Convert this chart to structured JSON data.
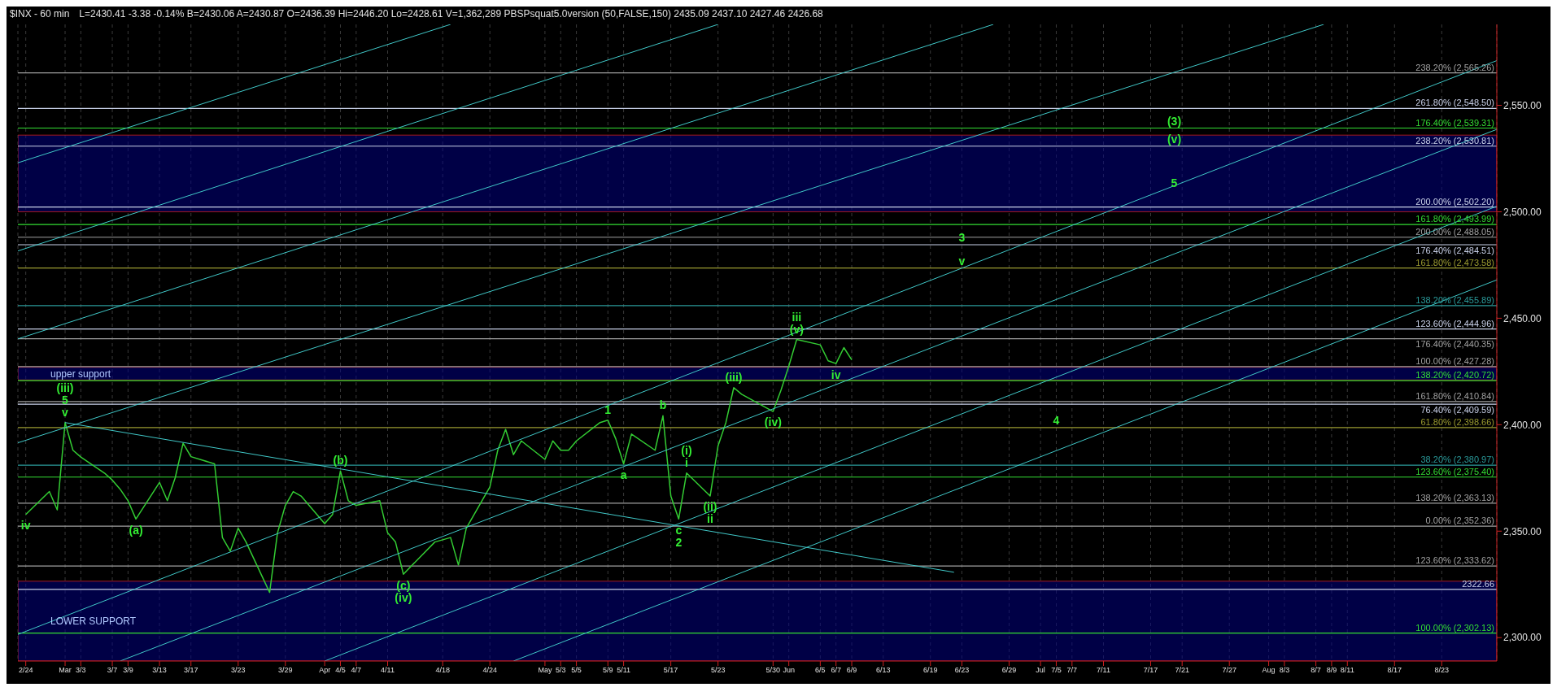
{
  "chart_data": {
    "type": "line",
    "title": "$INX - 60 min",
    "subtitle": "L=2430.41 -3.38 -0.14% B=2430.06 A=2430.87 O=2436.39 Hi=2446.20 Lo=2428.61 V=1,362,289 PBSPsquat5.0version (50,FALSE,150) 2435.09 2437.10 2427.46 2426.68",
    "x": [
      "--02-24",
      "--02-27",
      "--02-28",
      "--03-01",
      "--03-02",
      "--03-03",
      "--03-06",
      "--03-07",
      "--03-08",
      "--03-09",
      "--03-10",
      "--03-13",
      "--03-14",
      "--03-15",
      "--03-16",
      "--03-17",
      "--03-20",
      "--03-21",
      "--03-22",
      "--03-23",
      "--03-24",
      "--03-27",
      "--03-28",
      "--03-29",
      "--03-30",
      "--03-31",
      "--04-03",
      "--04-04",
      "--04-05",
      "--04-06",
      "--04-07",
      "--04-10",
      "--04-11",
      "--04-12",
      "--04-13",
      "--04-17",
      "--04-19",
      "--04-20",
      "--04-21",
      "--04-24",
      "--04-25",
      "--04-26",
      "--04-27",
      "--04-28",
      "--05-01",
      "--05-02",
      "--05-03",
      "--05-04",
      "--05-05",
      "--05-08",
      "--05-09",
      "--05-10",
      "--05-11",
      "--05-12",
      "--05-15",
      "--05-16",
      "--05-17",
      "--05-18",
      "--05-19",
      "--05-22",
      "--05-23",
      "--05-24",
      "--05-25",
      "--05-26",
      "--05-30",
      "--05-31",
      "--06-01",
      "--06-02",
      "--06-05",
      "--06-06",
      "--06-07",
      "--06-08",
      "--06-09"
    ],
    "series": [
      {
        "color": "#33cc33",
        "values": [
          2357.8,
          2368.6,
          2360,
          2401,
          2388,
          2384.8,
          2377.3,
          2374,
          2369.7,
          2364.3,
          2355.7,
          2372.9,
          2364.3,
          2375.1,
          2391.3,
          2385,
          2381.6,
          2347,
          2340.6,
          2351.4,
          2344.9,
          2321.2,
          2349.2,
          2362.1,
          2368.6,
          2366.5,
          2353.5,
          2357.8,
          2378.3,
          2364.3,
          2362.1,
          2364.3,
          2349.2,
          2344.9,
          2329.8,
          2344.9,
          2347,
          2334.1,
          2351.4,
          2370.8,
          2388,
          2397.8,
          2385.9,
          2392.4,
          2383.7,
          2392.4,
          2388,
          2388,
          2392.4,
          2401,
          2402.1,
          2393.4,
          2381.6,
          2395.6,
          2388,
          2404.2,
          2366.5,
          2355.7,
          2377.3,
          2366.5,
          2390,
          2401,
          2417.4,
          2414.3,
          2406.2,
          2416.2,
          2427.5,
          2440,
          2437.5,
          2430,
          2428.7,
          2436.2,
          2430.4
        ]
      },
      {
        "type": "line",
        "color": "#40c8c8",
        "x": [
          "--02-23",
          "--04-19"
        ],
        "values": [
          2523,
          2588
        ]
      },
      {
        "type": "line",
        "color": "#40c8c8",
        "x": [
          "--02-23",
          "--05-23"
        ],
        "values": [
          2481.6,
          2588
        ]
      },
      {
        "type": "line",
        "color": "#40c8c8",
        "x": [
          "--02-23",
          "--06-27"
        ],
        "values": [
          2440.3,
          2588
        ]
      },
      {
        "type": "line",
        "color": "#40c8c8",
        "x": [
          "--02-23",
          "--08-08"
        ],
        "values": [
          2391.5,
          2588
        ]
      },
      {
        "type": "line",
        "color": "#40c8c8",
        "x": [
          "--02-23",
          "--08-30"
        ],
        "values": [
          2301.5,
          2571
        ]
      },
      {
        "type": "line",
        "color": "#40c8c8",
        "x": [
          "--03-08",
          "--08-30"
        ],
        "values": [
          2289,
          2538.7
        ]
      },
      {
        "type": "line",
        "color": "#40c8c8",
        "x": [
          "--04-03",
          "--08-30"
        ],
        "values": [
          2289,
          2502.6
        ]
      },
      {
        "type": "line",
        "color": "#40c8c8",
        "x": [
          "--04-27",
          "--08-30"
        ],
        "values": [
          2289,
          2468
        ]
      },
      {
        "type": "line",
        "color": "#40c8c8",
        "x": [
          "--03-01",
          "--06-22"
        ],
        "values": [
          2401,
          2330.7
        ]
      }
    ],
    "xlim": [
      "--02-23",
      "--08-30"
    ],
    "xticks": [
      {
        "value": "--02-24",
        "label": "2/24"
      },
      {
        "value": "--03-01",
        "label": "Mar"
      },
      {
        "value": "--03-03",
        "label": "3/3"
      },
      {
        "value": "--03-07",
        "label": "3/7"
      },
      {
        "value": "--03-09",
        "label": "3/9"
      },
      {
        "value": "--03-13",
        "label": "3/13"
      },
      {
        "value": "--03-17",
        "label": "3/17"
      },
      {
        "value": "--03-23",
        "label": "3/23"
      },
      {
        "value": "--03-29",
        "label": "3/29"
      },
      {
        "value": "--04-03",
        "label": "Apr"
      },
      {
        "value": "--04-05",
        "label": "4/5"
      },
      {
        "value": "--04-07",
        "label": "4/7"
      },
      {
        "value": "--04-11",
        "label": "4/11"
      },
      {
        "value": "--04-18",
        "label": "4/18"
      },
      {
        "value": "--04-24",
        "label": "4/24"
      },
      {
        "value": "--05-01",
        "label": "May"
      },
      {
        "value": "--05-03",
        "label": "5/3"
      },
      {
        "value": "--05-05",
        "label": "5/5"
      },
      {
        "value": "--05-09",
        "label": "5/9"
      },
      {
        "value": "--05-11",
        "label": "5/11"
      },
      {
        "value": "--05-17",
        "label": "5/17"
      },
      {
        "value": "--05-23",
        "label": "5/23"
      },
      {
        "value": "--05-30",
        "label": "5/30"
      },
      {
        "value": "--06-01",
        "label": "Jun"
      },
      {
        "value": "--06-05",
        "label": "6/5"
      },
      {
        "value": "--06-07",
        "label": "6/7"
      },
      {
        "value": "--06-09",
        "label": "6/9"
      },
      {
        "value": "--06-13",
        "label": "6/13"
      },
      {
        "value": "--06-19",
        "label": "6/19"
      },
      {
        "value": "--06-23",
        "label": "6/23"
      },
      {
        "value": "--06-29",
        "label": "6/29"
      },
      {
        "value": "--07-03",
        "label": "Jul"
      },
      {
        "value": "--07-05",
        "label": "7/5"
      },
      {
        "value": "--07-07",
        "label": "7/7"
      },
      {
        "value": "--07-11",
        "label": "7/11"
      },
      {
        "value": "--07-17",
        "label": "7/17"
      },
      {
        "value": "--07-21",
        "label": "7/21"
      },
      {
        "value": "--07-27",
        "label": "7/27"
      },
      {
        "value": "--08-01",
        "label": "Aug"
      },
      {
        "value": "--08-03",
        "label": "8/3"
      },
      {
        "value": "--08-07",
        "label": "8/7"
      },
      {
        "value": "--08-09",
        "label": "8/9"
      },
      {
        "value": "--08-11",
        "label": "8/11"
      },
      {
        "value": "--08-17",
        "label": "8/17"
      },
      {
        "value": "--08-23",
        "label": "8/23"
      }
    ],
    "ylim": [
      2289,
      2588
    ],
    "yticks": [
      {
        "value": 2300,
        "label": "2,300.00"
      },
      {
        "value": 2350,
        "label": "2,350.00"
      },
      {
        "value": 2400,
        "label": "2,400.00"
      },
      {
        "value": 2450,
        "label": "2,450.00"
      },
      {
        "value": 2500,
        "label": "2,500.00"
      },
      {
        "value": 2550,
        "label": "2,550.00"
      }
    ],
    "grid": "x",
    "marker": "none",
    "ref_lines": [
      {
        "axis": "y",
        "value": 2565.26,
        "label": "238.20% (2,565.26)",
        "color": "#a0a0a0"
      },
      {
        "axis": "y",
        "value": 2548.5,
        "label": "261.80% (2,548.50)",
        "color": "#c8d0e8"
      },
      {
        "axis": "y",
        "value": 2539.31,
        "label": "176.40% (2,539.31)",
        "color": "#33dd33"
      },
      {
        "axis": "y",
        "value": 2530.81,
        "label": "238.20% (2,530.81)",
        "color": "#c8d0e8"
      },
      {
        "axis": "y",
        "value": 2502.2,
        "label": "200.00% (2,502.20)",
        "color": "#c8d0e8"
      },
      {
        "axis": "y",
        "value": 2493.99,
        "label": "161.80% (2,493.99)",
        "color": "#33dd33"
      },
      {
        "axis": "y",
        "value": 2488.05,
        "label": "200.00% (2,488.05)",
        "color": "#a0a0a0"
      },
      {
        "axis": "y",
        "value": 2484.51,
        "label": "176.40% (2,484.51)",
        "color": "#c8d0e8"
      },
      {
        "axis": "y",
        "value": 2473.58,
        "label": "161.80% (2,473.58)",
        "color": "#9a9a30"
      },
      {
        "axis": "y",
        "value": 2455.89,
        "label": "138.20% (2,455.89)",
        "color": "#2a9a9a"
      },
      {
        "axis": "y",
        "value": 2444.96,
        "label": "123.60% (2,444.96)",
        "color": "#c8d0e8"
      },
      {
        "axis": "y",
        "value": 2440.35,
        "label": "176.40% (2,440.35)",
        "color": "#a0a0a0"
      },
      {
        "axis": "y",
        "value": 2427.28,
        "label": "100.00% (2,427.28)",
        "color": "#a0a0a0"
      },
      {
        "axis": "y",
        "value": 2420.72,
        "label": "138.20% (2,420.72)",
        "color": "#33dd33"
      },
      {
        "axis": "y",
        "value": 2410.84,
        "label": "161.80% (2,410.84)",
        "color": "#a0a0a0"
      },
      {
        "axis": "y",
        "value": 2409.59,
        "label": "76.40% (2,409.59)",
        "color": "#c8d0e8"
      },
      {
        "axis": "y",
        "value": 2398.66,
        "label": "61.80% (2,398.66)",
        "color": "#9a9a30"
      },
      {
        "axis": "y",
        "value": 2380.97,
        "label": "38.20% (2,380.97)",
        "color": "#2a9a9a"
      },
      {
        "axis": "y",
        "value": 2375.4,
        "label": "123.60% (2,375.40)",
        "color": "#33dd33"
      },
      {
        "axis": "y",
        "value": 2363.13,
        "label": "138.20% (2,363.13)",
        "color": "#a0a0a0"
      },
      {
        "axis": "y",
        "value": 2352.36,
        "label": "0.00% (2,352.36)",
        "color": "#a0a0a0"
      },
      {
        "axis": "y",
        "value": 2333.62,
        "label": "123.60% (2,333.62)",
        "color": "#a0a0a0"
      },
      {
        "axis": "y",
        "value": 2322.66,
        "label": "2322.66",
        "color": "#c8d0e8"
      },
      {
        "axis": "y",
        "value": 2302.13,
        "label": "100.00% (2,302.13)",
        "color": "#33dd33"
      }
    ],
    "bands": [
      {
        "axis": "y",
        "from": 2421,
        "to": 2427,
        "label": "upper support",
        "color": "#000080"
      },
      {
        "axis": "y",
        "from": 2500,
        "to": 2536,
        "color": "#000080"
      },
      {
        "axis": "y",
        "from": 2289,
        "to": 2326.5,
        "label": "LOWER SUPPORT",
        "color": "#000080"
      }
    ],
    "annotations": [
      {
        "text": "(iii)",
        "x": "--03-01",
        "y": 2401
      },
      {
        "text": "5",
        "x": "--03-01",
        "y": 2401
      },
      {
        "text": "v",
        "x": "--03-01",
        "y": 2401
      },
      {
        "text": "iv",
        "x": "--02-24",
        "y": 2357.8
      },
      {
        "text": "(a)",
        "x": "--03-10",
        "y": 2355.7
      },
      {
        "text": "(b)",
        "x": "--04-05",
        "y": 2378.3
      },
      {
        "text": "(c)",
        "x": "--04-13",
        "y": 2329.8
      },
      {
        "text": "(iv)",
        "x": "--04-13",
        "y": 2329.8
      },
      {
        "text": "1",
        "x": "--05-09",
        "y": 2402.1
      },
      {
        "text": "a",
        "x": "--05-11",
        "y": 2381.6
      },
      {
        "text": "b",
        "x": "--05-16",
        "y": 2404.2
      },
      {
        "text": "c",
        "x": "--05-18",
        "y": 2355.7
      },
      {
        "text": "2",
        "x": "--05-18",
        "y": 2355.7
      },
      {
        "text": "(i)",
        "x": "--05-19",
        "y": 2377.3
      },
      {
        "text": "i",
        "x": "--05-19",
        "y": 2377.3
      },
      {
        "text": "(ii)",
        "x": "--05-22",
        "y": 2366.5
      },
      {
        "text": "ii",
        "x": "--05-22",
        "y": 2366.5
      },
      {
        "text": "(iii)",
        "x": "--05-25",
        "y": 2417.4
      },
      {
        "text": "(iv)",
        "x": "--05-30",
        "y": 2406.2
      },
      {
        "text": "iii",
        "x": "--06-02",
        "y": 2440
      },
      {
        "text": "(v)",
        "x": "--06-02",
        "y": 2440
      },
      {
        "text": "iv",
        "x": "--06-07",
        "y": 2428.7
      },
      {
        "text": "3",
        "x": "--06-23",
        "y": 2484.51
      },
      {
        "text": "v",
        "x": "--06-23",
        "y": 2473.58
      },
      {
        "text": "4",
        "x": "--07-05",
        "y": 2398.66
      },
      {
        "text": "(3)",
        "x": "--07-20",
        "y": 2539.31
      },
      {
        "text": "(v)",
        "x": "--07-20",
        "y": 2530.81
      },
      {
        "text": "5",
        "x": "--07-20",
        "y": 2510
      }
    ]
  }
}
